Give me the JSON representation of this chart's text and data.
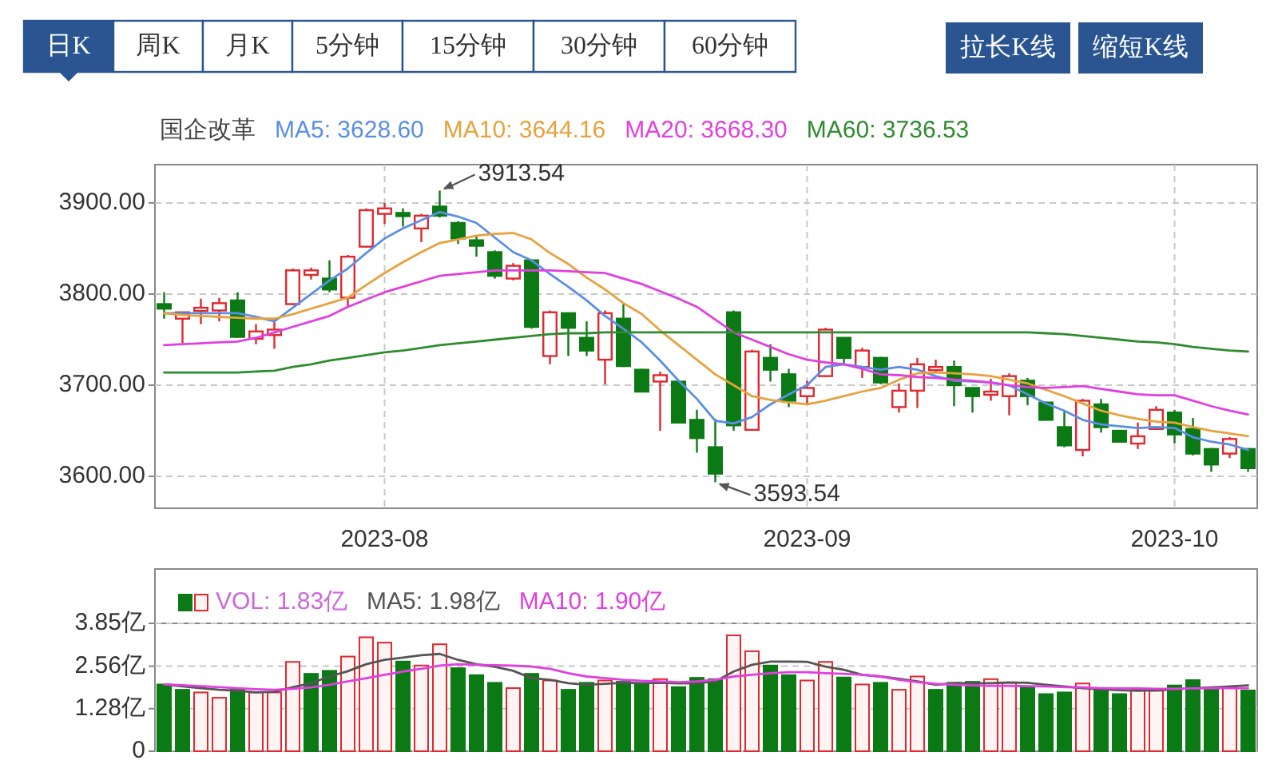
{
  "chart_data": [
    {
      "type": "other",
      "annotations": [
        "日K",
        "周K",
        "月K",
        "5分钟",
        "15分钟",
        "30分钟",
        "60分钟"
      ]
    },
    {
      "type": "other",
      "annotations": [
        "拉长K线",
        "缩短K线"
      ]
    },
    {
      "type": "candlestick",
      "title": "国企改革",
      "legend": "top",
      "grid": true,
      "categories": [
        null,
        null,
        null,
        null,
        null,
        null,
        null,
        null,
        null,
        null,
        null,
        null,
        "2023-08",
        null,
        null,
        null,
        null,
        null,
        null,
        null,
        null,
        null,
        null,
        null,
        null,
        null,
        null,
        null,
        null,
        null,
        null,
        null,
        null,
        null,
        null,
        "2023-09",
        null,
        null,
        null,
        null,
        null,
        null,
        null,
        null,
        null,
        null,
        null,
        null,
        null,
        null,
        null,
        null,
        null,
        null,
        null,
        "2023-10",
        null,
        null,
        null,
        null
      ],
      "ylim": [
        3565,
        3942
      ],
      "yticks": [
        {
          "value": 3600,
          "label": "3600.00"
        },
        {
          "value": 3700,
          "label": "3700.00"
        },
        {
          "value": 3800,
          "label": "3800.00"
        },
        {
          "value": 3900,
          "label": "3900.00"
        }
      ],
      "ohlc": [
        [
          3789,
          3802,
          3773,
          3784
        ],
        [
          3773,
          3780,
          3746,
          3780
        ],
        [
          3783,
          3795,
          3767,
          3785
        ],
        [
          3782,
          3796,
          3770,
          3790
        ],
        [
          3793,
          3802,
          3752,
          3753
        ],
        [
          3751,
          3767,
          3745,
          3759
        ],
        [
          3755,
          3773,
          3740,
          3761
        ],
        [
          3789,
          3828,
          3788,
          3826
        ],
        [
          3821,
          3829,
          3816,
          3826
        ],
        [
          3817,
          3837,
          3802,
          3805
        ],
        [
          3796,
          3843,
          3785,
          3841
        ],
        [
          3852,
          3894,
          3851,
          3892
        ],
        [
          3888,
          3900,
          3877,
          3894
        ],
        [
          3889,
          3894,
          3874,
          3886
        ],
        [
          3872,
          3888,
          3857,
          3886
        ],
        [
          3896,
          3913.54,
          3884,
          3886
        ],
        [
          3878,
          3880,
          3855,
          3861
        ],
        [
          3859,
          3864,
          3841,
          3853
        ],
        [
          3846,
          3848,
          3817,
          3820
        ],
        [
          3817,
          3834,
          3815,
          3831
        ],
        [
          3837,
          3837,
          3762,
          3764
        ],
        [
          3732,
          3782,
          3723,
          3780
        ],
        [
          3779,
          3780,
          3732,
          3763
        ],
        [
          3752,
          3770,
          3732,
          3738
        ],
        [
          3728,
          3782,
          3701,
          3779
        ],
        [
          3773,
          3789,
          3720,
          3721
        ],
        [
          3717,
          3718,
          3692,
          3693
        ],
        [
          3704,
          3715,
          3650,
          3711
        ],
        [
          3704,
          3706,
          3658,
          3659
        ],
        [
          3662,
          3673,
          3626,
          3642
        ],
        [
          3632,
          3663,
          3593.54,
          3603
        ],
        [
          3780,
          3782,
          3650,
          3656
        ],
        [
          3651,
          3739,
          3650,
          3737
        ],
        [
          3730,
          3745,
          3704,
          3717
        ],
        [
          3712,
          3718,
          3676,
          3683
        ],
        [
          3688,
          3705,
          3679,
          3697
        ],
        [
          3710,
          3763,
          3709,
          3761
        ],
        [
          3752,
          3752,
          3724,
          3730
        ],
        [
          3720,
          3741,
          3708,
          3738
        ],
        [
          3730,
          3731,
          3701,
          3703
        ],
        [
          3676,
          3702,
          3670,
          3694
        ],
        [
          3694,
          3730,
          3675,
          3723
        ],
        [
          3718,
          3728,
          3714,
          3720
        ],
        [
          3720,
          3727,
          3677,
          3700
        ],
        [
          3697,
          3697,
          3670,
          3688
        ],
        [
          3691,
          3707,
          3683,
          3693
        ],
        [
          3688,
          3713,
          3667,
          3710
        ],
        [
          3705,
          3708,
          3678,
          3688
        ],
        [
          3681,
          3682,
          3661,
          3662
        ],
        [
          3654,
          3671,
          3632,
          3634
        ],
        [
          3629,
          3685,
          3622,
          3683
        ],
        [
          3679,
          3685,
          3648,
          3654
        ],
        [
          3650,
          3651,
          3637,
          3638
        ],
        [
          3636,
          3659,
          3630,
          3644
        ],
        [
          3652,
          3677,
          3651,
          3673
        ],
        [
          3670,
          3673,
          3636,
          3646
        ],
        [
          3652,
          3664,
          3623,
          3625
        ],
        [
          3630,
          3631,
          3605,
          3613
        ],
        [
          3625,
          3643,
          3620,
          3641
        ],
        [
          3630,
          3631,
          3605,
          3609
        ]
      ],
      "series": [
        {
          "name": "MA5: 3628.60",
          "type": "line",
          "color": "#5b8ee6",
          "values": [
            3779,
            3779,
            3779,
            3779,
            3779,
            3775,
            3770,
            3785,
            3800,
            3815,
            3828,
            3845,
            3861,
            3872,
            3881,
            3890,
            3885,
            3878,
            3862,
            3846,
            3837,
            3822,
            3808,
            3793,
            3776,
            3762,
            3747,
            3727,
            3705,
            3685,
            3661,
            3658,
            3665,
            3679,
            3690,
            3700,
            3720,
            3723,
            3720,
            3717,
            3720,
            3717,
            3710,
            3705,
            3704,
            3703,
            3700,
            3690,
            3680,
            3672,
            3662,
            3657,
            3655,
            3653,
            3654,
            3653,
            3643,
            3638,
            3635,
            3629
          ]
        },
        {
          "name": "MA10: 3644.16",
          "type": "line",
          "color": "#e6a23c",
          "values": [
            3779,
            3777,
            3776,
            3775,
            3774,
            3773,
            3773,
            3778,
            3784,
            3790,
            3796,
            3810,
            3823,
            3835,
            3846,
            3856,
            3860,
            3864,
            3866,
            3867,
            3860,
            3845,
            3833,
            3818,
            3805,
            3790,
            3778,
            3760,
            3744,
            3728,
            3712,
            3700,
            3688,
            3684,
            3681,
            3679,
            3683,
            3688,
            3693,
            3697,
            3706,
            3713,
            3714,
            3713,
            3712,
            3710,
            3706,
            3702,
            3695,
            3688,
            3680,
            3672,
            3667,
            3663,
            3660,
            3659,
            3654,
            3650,
            3647,
            3644
          ]
        },
        {
          "name": "MA20: 3668.30",
          "type": "line",
          "color": "#e040e0",
          "values": [
            3744,
            3745,
            3746,
            3747,
            3748,
            3752,
            3758,
            3764,
            3770,
            3776,
            3786,
            3794,
            3802,
            3808,
            3814,
            3820,
            3822,
            3824,
            3826,
            3826,
            3826,
            3826,
            3825,
            3824,
            3823,
            3817,
            3811,
            3803,
            3795,
            3786,
            3772,
            3758,
            3750,
            3742,
            3734,
            3728,
            3725,
            3723,
            3718,
            3712,
            3711,
            3709,
            3708,
            3706,
            3705,
            3703,
            3700,
            3698,
            3697,
            3698,
            3699,
            3696,
            3693,
            3690,
            3689,
            3689,
            3683,
            3677,
            3672,
            3668
          ]
        },
        {
          "name": "MA60: 3736.53",
          "type": "line",
          "color": "#2e8b2e",
          "values": [
            3714,
            3714,
            3714,
            3714,
            3714,
            3715,
            3716,
            3720,
            3723,
            3727,
            3730,
            3733,
            3736,
            3738,
            3741,
            3744,
            3746,
            3748,
            3750,
            3752,
            3754,
            3756,
            3757,
            3757,
            3758,
            3758,
            3758,
            3758,
            3758,
            3758,
            3758,
            3758,
            3758,
            3758,
            3758,
            3758,
            3758,
            3758,
            3758,
            3758,
            3758,
            3758,
            3758,
            3758,
            3758,
            3758,
            3758,
            3758,
            3757,
            3756,
            3754,
            3752,
            3750,
            3748,
            3747,
            3745,
            3742,
            3740,
            3738,
            3737
          ]
        }
      ],
      "annotations": [
        "3913.54",
        "3593.54"
      ]
    },
    {
      "type": "bar",
      "legend": "top",
      "grid": true,
      "tick_labels": "y",
      "categories": [
        null,
        null,
        null,
        null,
        null,
        null,
        null,
        null,
        null,
        null,
        null,
        null,
        null,
        null,
        null,
        null,
        null,
        null,
        null,
        null,
        null,
        null,
        null,
        null,
        null,
        null,
        null,
        null,
        null,
        null,
        null,
        null,
        null,
        null,
        null,
        null,
        null,
        null,
        null,
        null,
        null,
        null,
        null,
        null,
        null,
        null,
        null,
        null,
        null,
        null,
        null,
        null,
        null,
        null,
        null,
        null,
        null,
        null,
        null,
        null
      ],
      "ylim": [
        0,
        3.85
      ],
      "yticks": [
        0,
        {
          "value": 1.28,
          "label": "1.28亿"
        },
        {
          "value": 2.56,
          "label": "2.56亿"
        },
        {
          "value": 3.85,
          "label": "3.85亿"
        }
      ],
      "series": [
        {
          "name": "VOL: 1.83亿",
          "type": "bar",
          "values": [
            2.01,
            1.85,
            1.77,
            1.61,
            1.85,
            1.77,
            1.77,
            2.69,
            2.33,
            2.42,
            2.85,
            3.43,
            3.27,
            2.7,
            2.58,
            3.22,
            2.5,
            2.29,
            2.06,
            1.9,
            2.33,
            2.13,
            1.85,
            2.06,
            2.13,
            2.09,
            2.01,
            2.17,
            1.93,
            2.21,
            2.17,
            3.49,
            3.01,
            2.58,
            2.29,
            2.13,
            2.69,
            2.22,
            2.01,
            2.06,
            1.85,
            2.25,
            1.85,
            2.06,
            2.09,
            2.17,
            2.06,
            1.93,
            1.72,
            1.77,
            2.04,
            1.9,
            1.72,
            1.85,
            1.82,
            1.98,
            2.14,
            1.9,
            1.93,
            1.83
          ],
          "colors": [
            "#0b7a14",
            "#0b7a14",
            "#e0282e",
            "#e0282e",
            "#0b7a14",
            "#e0282e",
            "#e0282e",
            "#e0282e",
            "#0b7a14",
            "#0b7a14",
            "#e0282e",
            "#e0282e",
            "#e0282e",
            "#0b7a14",
            "#e0282e",
            "#e0282e",
            "#0b7a14",
            "#0b7a14",
            "#0b7a14",
            "#e0282e",
            "#0b7a14",
            "#e0282e",
            "#0b7a14",
            "#0b7a14",
            "#e0282e",
            "#0b7a14",
            "#0b7a14",
            "#e0282e",
            "#0b7a14",
            "#0b7a14",
            "#0b7a14",
            "#e0282e",
            "#e0282e",
            "#0b7a14",
            "#0b7a14",
            "#e0282e",
            "#e0282e",
            "#0b7a14",
            "#e0282e",
            "#0b7a14",
            "#e0282e",
            "#e0282e",
            "#0b7a14",
            "#0b7a14",
            "#0b7a14",
            "#e0282e",
            "#e0282e",
            "#0b7a14",
            "#0b7a14",
            "#0b7a14",
            "#e0282e",
            "#0b7a14",
            "#0b7a14",
            "#e0282e",
            "#e0282e",
            "#0b7a14",
            "#0b7a14",
            "#0b7a14",
            "#e0282e",
            "#0b7a14"
          ]
        },
        {
          "name": "MA5: 1.98亿",
          "type": "line",
          "color": "#555555",
          "values": [
            2.01,
            1.95,
            1.9,
            1.85,
            1.82,
            1.77,
            1.79,
            1.93,
            2.05,
            2.25,
            2.41,
            2.62,
            2.75,
            2.82,
            2.89,
            2.93,
            2.75,
            2.62,
            2.54,
            2.42,
            2.2,
            2.15,
            2.05,
            2.0,
            2.03,
            2.06,
            2.05,
            2.06,
            2.04,
            2.05,
            2.1,
            2.4,
            2.6,
            2.7,
            2.7,
            2.69,
            2.55,
            2.45,
            2.3,
            2.25,
            2.18,
            2.1,
            2.0,
            2.05,
            2.05,
            2.05,
            2.07,
            2.06,
            2.0,
            1.95,
            1.9,
            1.86,
            1.84,
            1.82,
            1.83,
            1.86,
            1.9,
            1.92,
            1.95,
            1.98
          ]
        },
        {
          "name": "MA10: 1.90亿",
          "type": "line",
          "color": "#e040e0",
          "values": [
            2.01,
            1.99,
            1.96,
            1.93,
            1.9,
            1.87,
            1.85,
            1.88,
            1.92,
            2.0,
            2.1,
            2.2,
            2.3,
            2.4,
            2.48,
            2.58,
            2.62,
            2.6,
            2.59,
            2.58,
            2.55,
            2.48,
            2.35,
            2.25,
            2.2,
            2.15,
            2.12,
            2.1,
            2.08,
            2.1,
            2.15,
            2.25,
            2.3,
            2.35,
            2.38,
            2.38,
            2.35,
            2.33,
            2.3,
            2.25,
            2.15,
            2.08,
            2.03,
            2.0,
            1.98,
            1.97,
            1.97,
            1.96,
            1.95,
            1.93,
            1.92,
            1.9,
            1.89,
            1.89,
            1.88,
            1.88,
            1.89,
            1.9,
            1.9,
            1.9
          ]
        }
      ]
    }
  ]
}
